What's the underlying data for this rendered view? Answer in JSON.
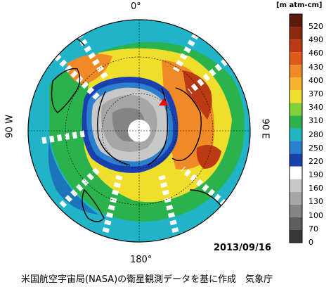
{
  "map": {
    "label_top": "0°",
    "label_bottom": "180°",
    "label_left": "90 W",
    "label_right": "90 E",
    "date": "2013/09/16",
    "credit": "米国航空宇宙局(NASA)の衛星観測データを基に作成　気象庁"
  },
  "legend": {
    "unit": "[m atm-cm]",
    "ticks": [
      "520",
      "490",
      "460",
      "430",
      "400",
      "370",
      "340",
      "310",
      "280",
      "250",
      "220",
      "190",
      "160",
      "130",
      "100",
      "70",
      "0"
    ],
    "colors": [
      "#5c1a0a",
      "#8c2a10",
      "#bb3a14",
      "#e05a1c",
      "#f08a26",
      "#f7b32e",
      "#efde2c",
      "#7fd13a",
      "#2fb14c",
      "#1fb6c0",
      "#2b7fcf",
      "#1a3fae",
      "#ffffff",
      "#c8c8c8",
      "#a6a6a6",
      "#848484",
      "#5e5e5e",
      "#383838"
    ]
  },
  "points": {
    "ozone_hole_fill": "#cccccc",
    "station_marker_color": "#ff0000"
  }
}
